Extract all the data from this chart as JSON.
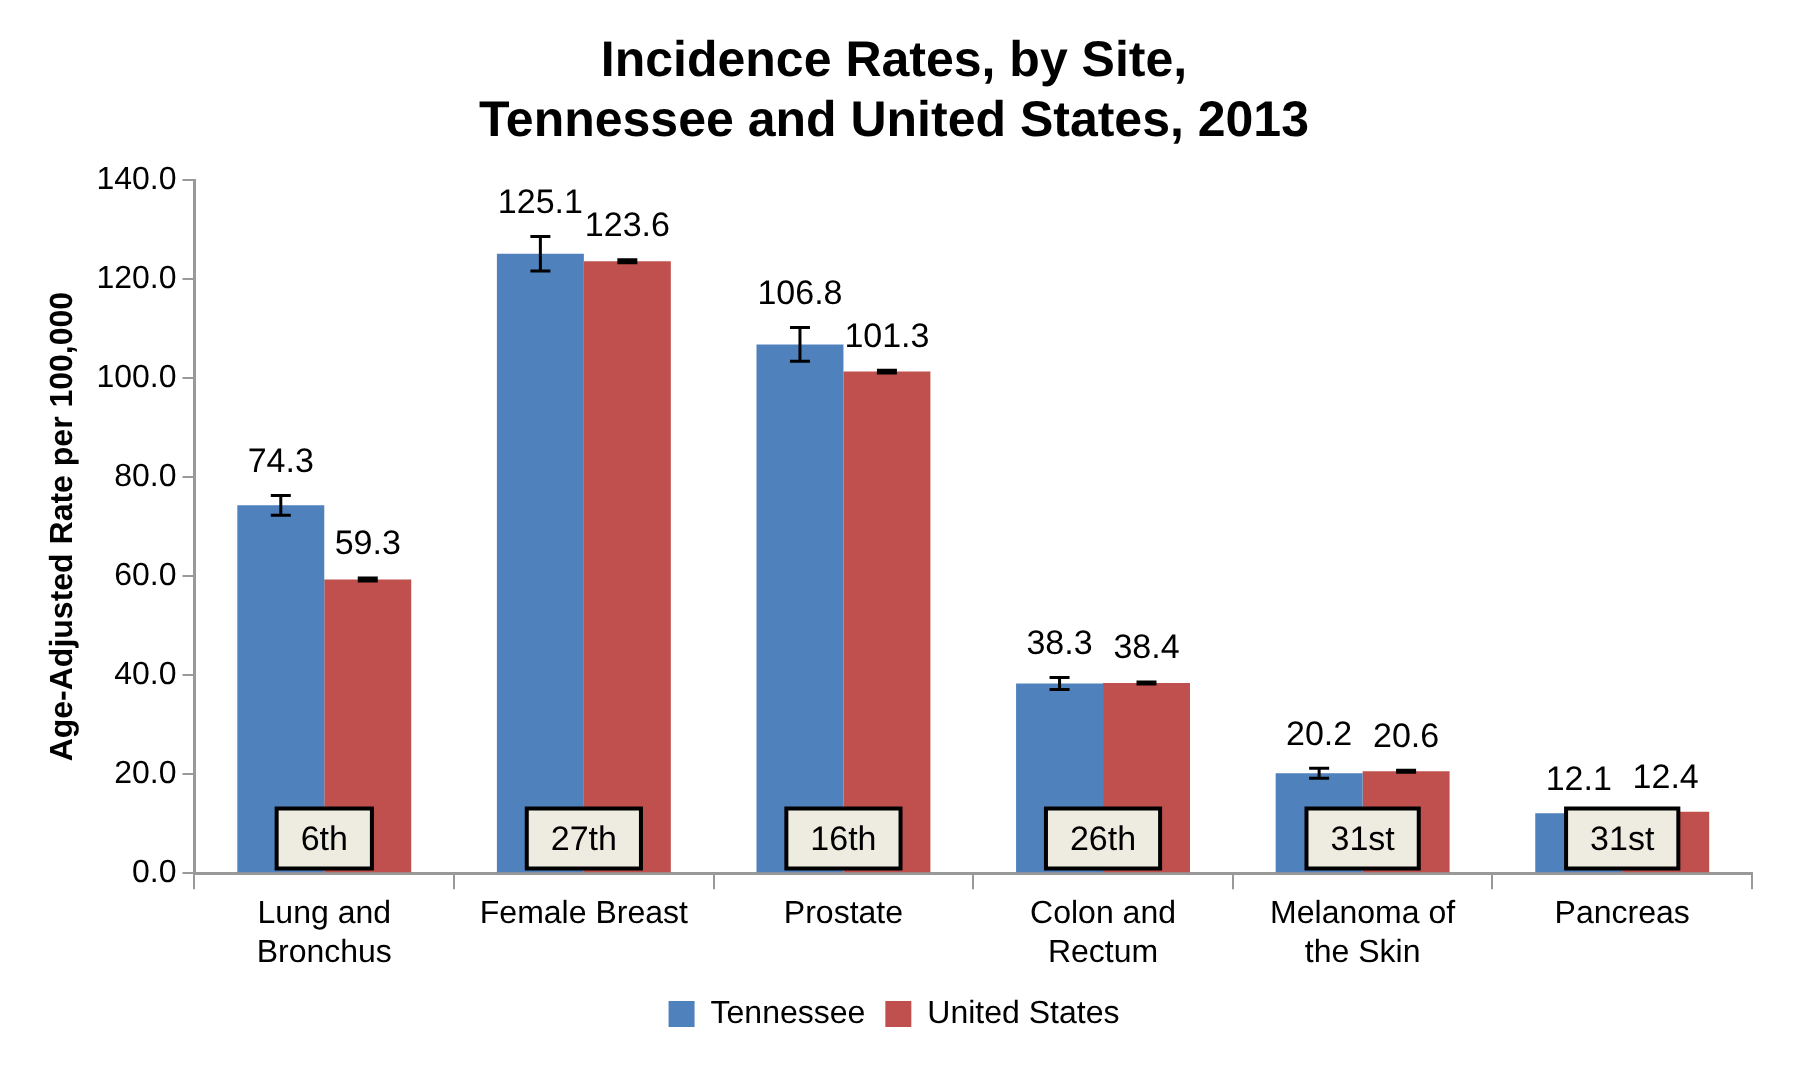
{
  "chart_data": {
    "type": "bar",
    "title": "Incidence Rates, by Site,\nTennessee and United States, 2013",
    "ylabel": "Age-Adjusted Rate per 100,000",
    "categories": [
      "Lung and\nBronchus",
      "Female Breast",
      "Prostate",
      "Colon and\nRectum",
      "Melanoma of\nthe Skin",
      "Pancreas"
    ],
    "series": [
      {
        "name": "Tennessee",
        "color": "#4f81bd",
        "values": [
          74.3,
          125.1,
          106.8,
          38.3,
          20.2,
          12.1
        ],
        "errors": [
          2.0,
          3.5,
          3.4,
          1.2,
          1.0,
          null
        ]
      },
      {
        "name": "United States",
        "color": "#c0504d",
        "values": [
          59.3,
          123.6,
          101.3,
          38.4,
          20.6,
          12.4
        ],
        "errors": [
          0.3,
          0.3,
          0.3,
          0.2,
          0.2,
          null
        ]
      }
    ],
    "ylim": [
      0,
      140
    ],
    "yticks": [
      {
        "value": 0,
        "label": "0.0"
      },
      {
        "value": 20,
        "label": "20.0"
      },
      {
        "value": 40,
        "label": "40.0"
      },
      {
        "value": 60,
        "label": "60.0"
      },
      {
        "value": 80,
        "label": "80.0"
      },
      {
        "value": 100,
        "label": "100.0"
      },
      {
        "value": 120,
        "label": "120.0"
      },
      {
        "value": 140,
        "label": "140.0"
      }
    ],
    "grid": false,
    "legend": "bottom",
    "data_labels": true,
    "annotations": [
      {
        "text": "6th",
        "x": "Lung and\nBronchus",
        "y": 7
      },
      {
        "text": "27th",
        "x": "Female Breast",
        "y": 7
      },
      {
        "text": "16th",
        "x": "Prostate",
        "y": 7
      },
      {
        "text": "26th",
        "x": "Colon and\nRectum",
        "y": 7
      },
      {
        "text": "31st",
        "x": "Melanoma of\nthe Skin",
        "y": 7
      },
      {
        "text": "31st",
        "x": "Pancreas",
        "y": 7
      }
    ]
  }
}
